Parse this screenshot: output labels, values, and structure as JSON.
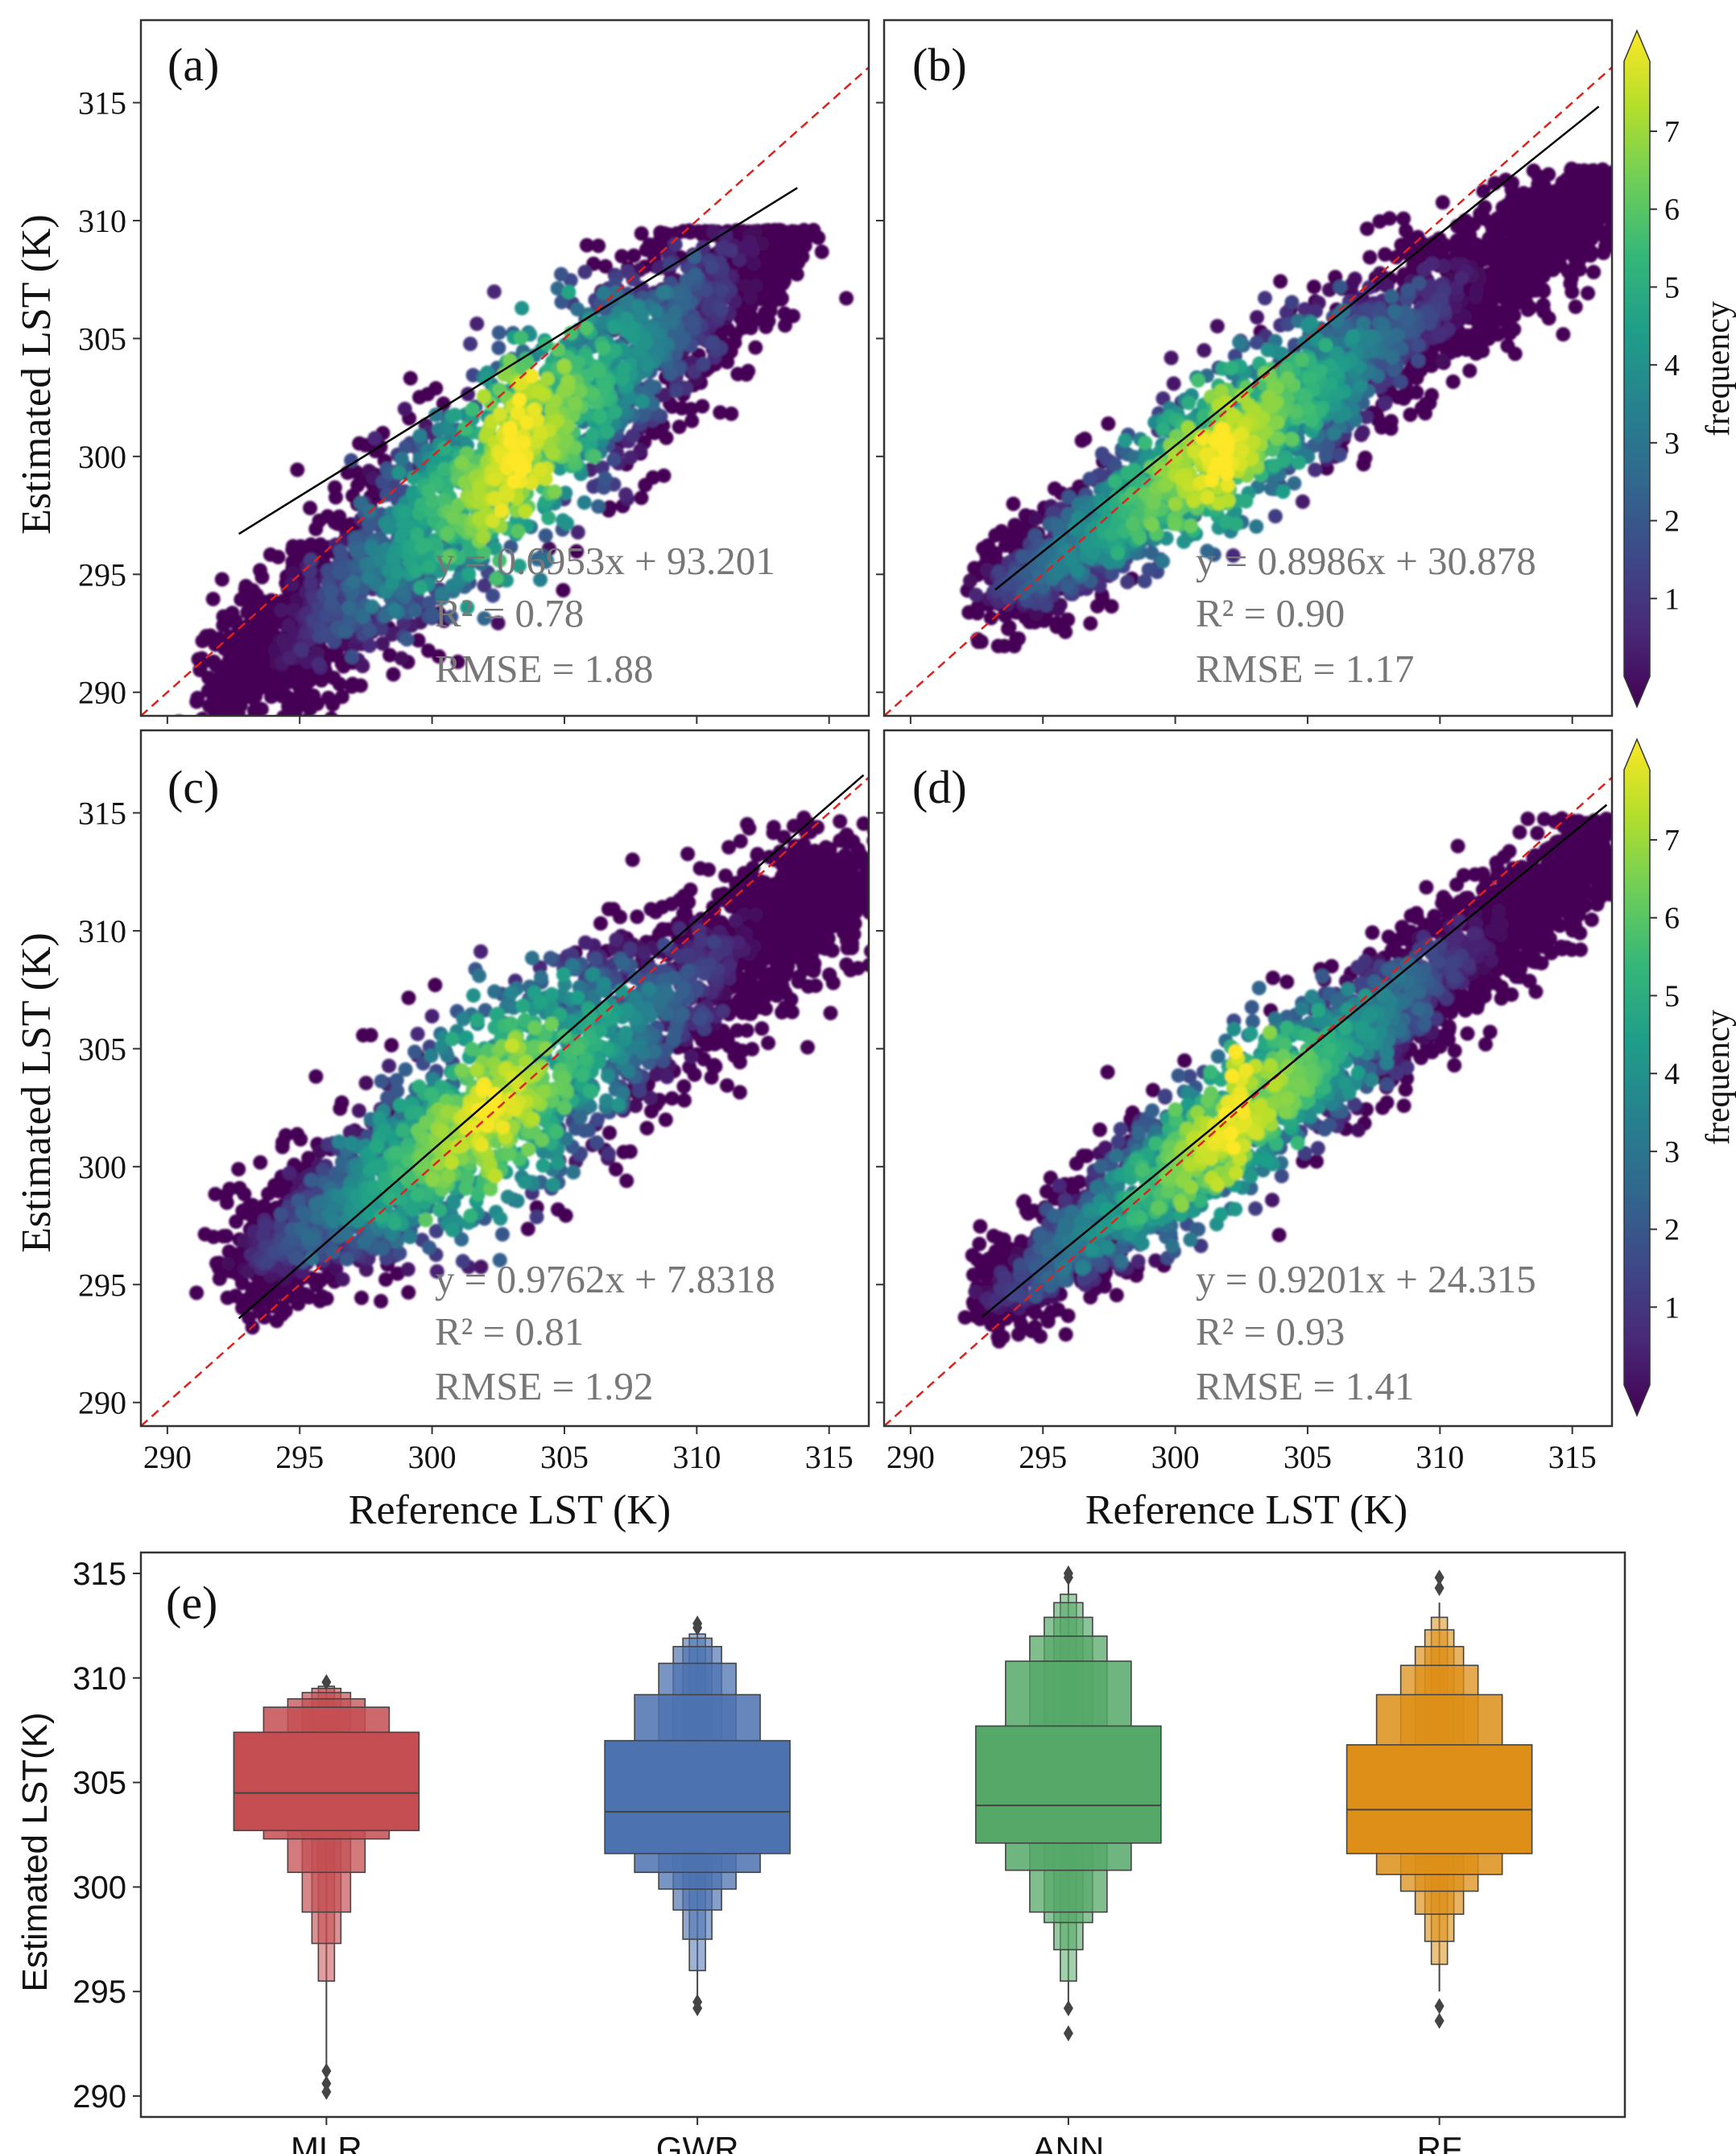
{
  "figure": {
    "x_axis_label": "Reference  LST (K)",
    "y_axis_label": "Estimated  LST (K)",
    "colorbar_label": "frequency",
    "colorbar_ticks": [
      "1",
      "2",
      "3",
      "4",
      "5",
      "6",
      "7"
    ],
    "colors": {
      "viridis": [
        "#440154",
        "#482878",
        "#3e4989",
        "#31688e",
        "#26828e",
        "#1f9e89",
        "#35b779",
        "#6ece58",
        "#b5de2b",
        "#fde725"
      ],
      "identity_line": "#e0201c",
      "fit_line": "#000000",
      "annotation_text": "#777777"
    }
  },
  "chart_data": [
    {
      "type": "scatter",
      "panel": "(a)",
      "xlabel": "",
      "ylabel": "Estimated  LST (K)",
      "xlim": [
        289,
        316.5
      ],
      "ylim": [
        289,
        318.5
      ],
      "xticks": [
        "290",
        "295",
        "300",
        "305",
        "310",
        "315"
      ],
      "yticks": [
        "290",
        "295",
        "300",
        "305",
        "310",
        "315"
      ],
      "show_xticklabels": false,
      "show_yticklabels": true,
      "density_band": {
        "x_start": 292,
        "x_end": 313.5,
        "y_start": 290,
        "y_end": 309.6,
        "y_cap": 309.6,
        "spread": 1.9,
        "peak_x": 303.2
      },
      "fit": {
        "slope": 0.6953,
        "intercept": 93.201,
        "x_range": [
          292.7,
          313.8
        ]
      },
      "annotation": {
        "equation": "y = 0.6953x + 93.201",
        "r2": "R² = 0.78",
        "rmse": "RMSE = 1.88"
      }
    },
    {
      "type": "scatter",
      "panel": "(b)",
      "xlabel": "",
      "ylabel": "",
      "xlim": [
        289,
        316.5
      ],
      "ylim": [
        289,
        318.5
      ],
      "xticks": [
        "290",
        "295",
        "300",
        "305",
        "310",
        "315"
      ],
      "yticks": [
        "290",
        "295",
        "300",
        "305",
        "310",
        "315"
      ],
      "show_xticklabels": false,
      "show_yticklabels": false,
      "density_band": {
        "x_start": 293.3,
        "x_end": 316.5,
        "y_start": 294,
        "y_end": 311.2,
        "y_cap": 312.2,
        "spread": 1.5,
        "peak_x": 301.6
      },
      "fit": {
        "slope": 0.8986,
        "intercept": 30.878,
        "x_range": [
          293.2,
          316.0
        ]
      },
      "annotation": {
        "equation": "y = 0.8986x + 30.878",
        "r2": "R² = 0.90",
        "rmse": "RMSE = 1.17"
      }
    },
    {
      "type": "scatter",
      "panel": "(c)",
      "xlabel": "Reference  LST (K)",
      "ylabel": "Estimated  LST (K)",
      "xlim": [
        289,
        316.5
      ],
      "ylim": [
        289,
        318.5
      ],
      "xticks": [
        "290",
        "295",
        "300",
        "305",
        "310",
        "315"
      ],
      "yticks": [
        "290",
        "295",
        "300",
        "305",
        "310",
        "315"
      ],
      "show_xticklabels": true,
      "show_yticklabels": true,
      "density_band": {
        "x_start": 293,
        "x_end": 316.5,
        "y_start": 295.8,
        "y_end": 312.5,
        "y_cap": 314.8,
        "spread": 1.9,
        "peak_x": 302.2
      },
      "fit": {
        "slope": 0.9762,
        "intercept": 7.8318,
        "x_range": [
          292.7,
          316.3
        ]
      },
      "annotation": {
        "equation": "y = 0.9762x + 7.8318",
        "r2": "R² = 0.81",
        "rmse": "RMSE = 1.92"
      }
    },
    {
      "type": "scatter",
      "panel": "(d)",
      "xlabel": "Reference  LST (K)",
      "ylabel": "",
      "xlim": [
        289,
        316.5
      ],
      "ylim": [
        289,
        318.5
      ],
      "xticks": [
        "290",
        "295",
        "300",
        "305",
        "310",
        "315"
      ],
      "yticks": [
        "290",
        "295",
        "300",
        "305",
        "310",
        "315"
      ],
      "show_xticklabels": true,
      "show_yticklabels": false,
      "density_band": {
        "x_start": 293,
        "x_end": 316.5,
        "y_start": 294.2,
        "y_end": 313.6,
        "y_cap": 314.8,
        "spread": 1.35,
        "peak_x": 302.2
      },
      "fit": {
        "slope": 0.9201,
        "intercept": 24.315,
        "x_range": [
          292.7,
          316.3
        ]
      },
      "annotation": {
        "equation": "y = 0.9201x + 24.315",
        "r2": "R² = 0.93",
        "rmse": "RMSE  = 1.41"
      }
    },
    {
      "type": "boxen",
      "panel": "(e)",
      "title": "",
      "xlabel": "",
      "ylabel": "Estimated LST(K)",
      "ylim": [
        289,
        316
      ],
      "yticks": [
        "290",
        "295",
        "300",
        "305",
        "310",
        "315"
      ],
      "categories": [
        "MLR",
        "GWR",
        "ANN",
        "RF"
      ],
      "series": [
        {
          "name": "MLR",
          "color": "#c44e52",
          "median": 304.5,
          "levels": [
            [
              302.7,
              307.4
            ],
            [
              302.3,
              308.6
            ],
            [
              300.7,
              309.0
            ],
            [
              298.8,
              309.3
            ],
            [
              297.3,
              309.5
            ],
            [
              295.5,
              309.6
            ]
          ],
          "whisker": [
            291.0,
            309.7
          ],
          "outliers": [
            290.2,
            290.6,
            291.2,
            309.8
          ]
        },
        {
          "name": "GWR",
          "color": "#4c72b0",
          "median": 303.6,
          "levels": [
            [
              301.6,
              307.0
            ],
            [
              300.7,
              309.2
            ],
            [
              299.9,
              310.7
            ],
            [
              298.9,
              311.5
            ],
            [
              297.5,
              311.9
            ],
            [
              296.0,
              312.1
            ]
          ],
          "whisker": [
            294.7,
            312.3
          ],
          "outliers": [
            294.2,
            294.5,
            312.4,
            312.6
          ]
        },
        {
          "name": "ANN",
          "color": "#55a868",
          "median": 303.9,
          "levels": [
            [
              302.1,
              307.7
            ],
            [
              300.8,
              310.8
            ],
            [
              298.8,
              312.0
            ],
            [
              298.3,
              312.9
            ],
            [
              297.0,
              313.6
            ],
            [
              295.5,
              314.0
            ]
          ],
          "whisker": [
            294.5,
            314.5
          ],
          "outliers": [
            293.0,
            294.2,
            314.8,
            315.0
          ]
        },
        {
          "name": "RF",
          "color": "#dd8f17",
          "median": 303.7,
          "levels": [
            [
              301.6,
              306.8
            ],
            [
              300.6,
              309.2
            ],
            [
              299.8,
              310.6
            ],
            [
              298.7,
              311.5
            ],
            [
              297.4,
              312.3
            ],
            [
              296.3,
              312.9
            ]
          ],
          "whisker": [
            295.0,
            313.6
          ],
          "outliers": [
            293.6,
            294.3,
            314.3,
            314.8
          ]
        }
      ]
    }
  ]
}
